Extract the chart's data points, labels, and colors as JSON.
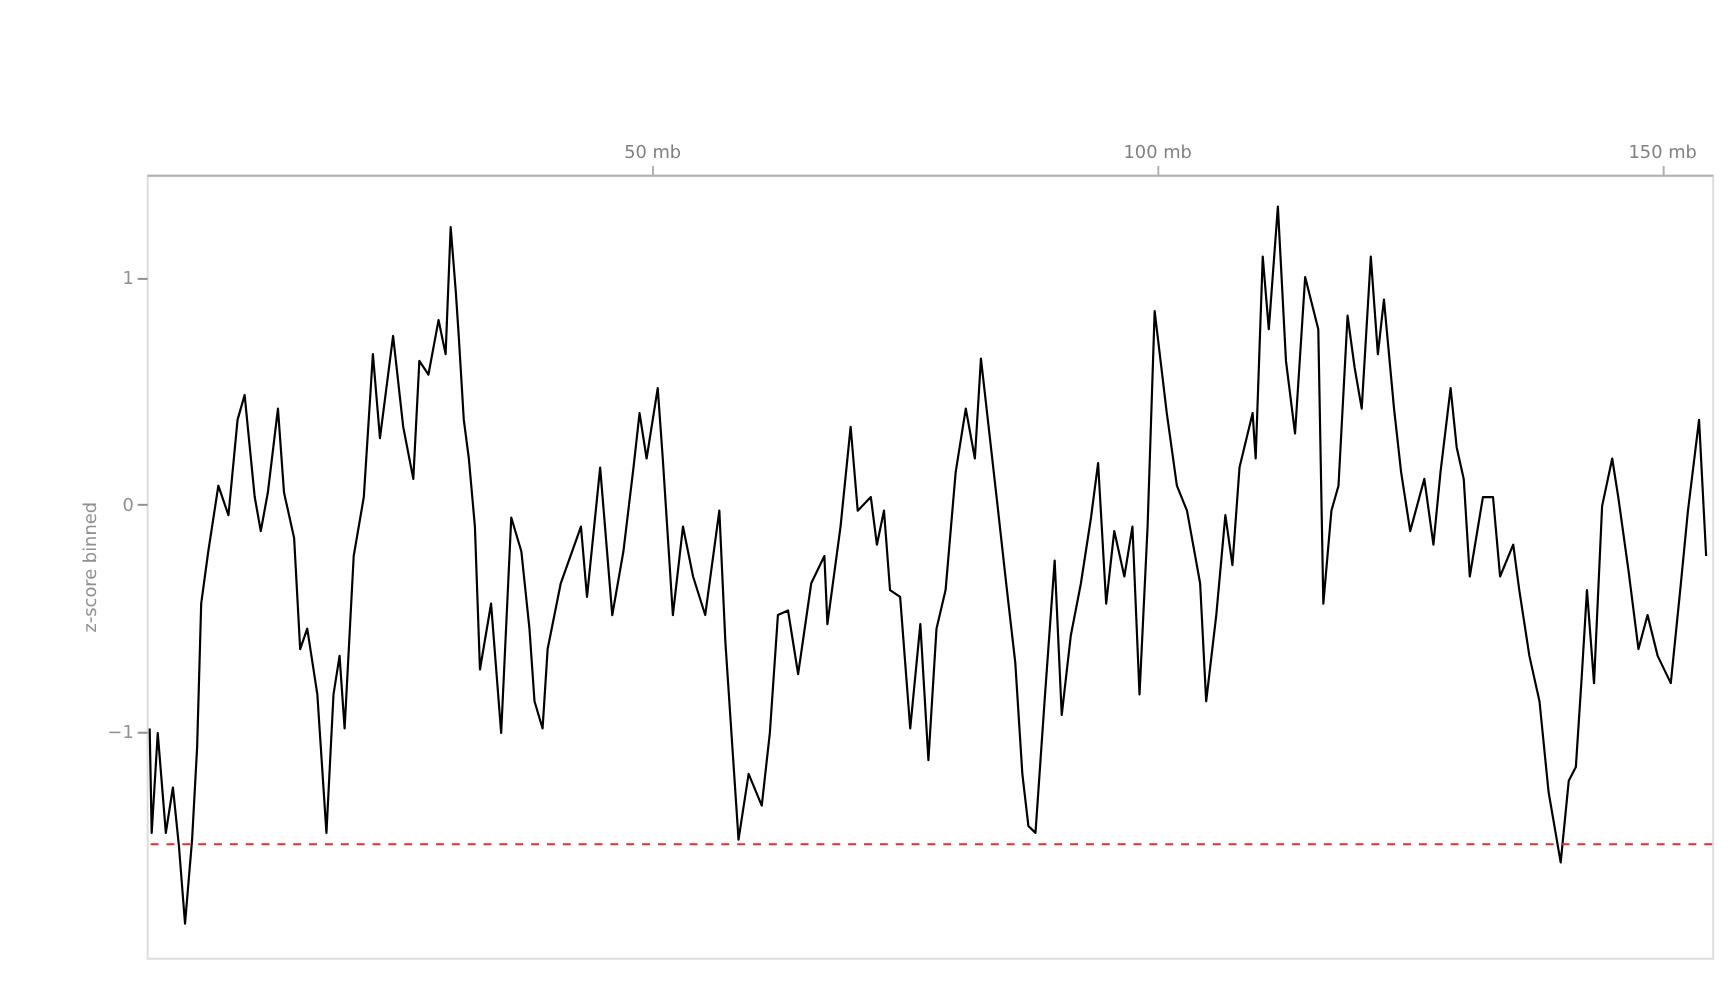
{
  "chart_data": {
    "type": "line",
    "ylabel": "z-score binned",
    "x": [
      0.3,
      0.5,
      1.1,
      1.9,
      2.6,
      3.2,
      3.8,
      4.5,
      5.0,
      5.4,
      6.1,
      7.1,
      8.1,
      9.0,
      9.7,
      10.7,
      11.3,
      12.0,
      13.0,
      13.6,
      14.6,
      15.2,
      15.9,
      16.9,
      17.8,
      18.5,
      19.1,
      19.6,
      20.5,
      21.5,
      22.4,
      23.1,
      24.4,
      25.4,
      26.4,
      27.0,
      27.9,
      28.9,
      29.6,
      30.1,
      30.6,
      30.9,
      31.4,
      31.9,
      32.5,
      33.0,
      34.1,
      35.1,
      36.1,
      37.1,
      37.9,
      38.4,
      39.2,
      39.7,
      41.0,
      43.0,
      43.6,
      44.9,
      46.1,
      47.2,
      48.2,
      48.8,
      49.5,
      50.6,
      51.1,
      52.1,
      53.1,
      54.1,
      55.3,
      56.7,
      57.3,
      58.6,
      59.6,
      60.9,
      61.7,
      62.5,
      63.5,
      64.5,
      65.8,
      67.1,
      67.4,
      68.7,
      69.7,
      70.4,
      71.7,
      72.3,
      73.0,
      73.6,
      74.6,
      75.6,
      76.6,
      77.4,
      78.2,
      79.1,
      80.1,
      81.1,
      82.0,
      82.6,
      84.1,
      85.1,
      86.0,
      86.7,
      87.3,
      88.0,
      88.9,
      89.9,
      90.6,
      91.5,
      92.5,
      93.5,
      94.2,
      95.0,
      95.8,
      96.8,
      97.6,
      98.3,
      99.1,
      99.8,
      101.0,
      102.0,
      103.0,
      104.3,
      104.9,
      105.9,
      106.8,
      107.5,
      108.2,
      109.5,
      109.8,
      110.5,
      111.1,
      112.0,
      112.8,
      113.7,
      114.7,
      116.0,
      116.5,
      117.3,
      118.0,
      118.9,
      119.6,
      120.3,
      121.2,
      121.9,
      122.5,
      123.5,
      124.2,
      125.1,
      126.5,
      127.4,
      128.1,
      129.1,
      129.7,
      130.4,
      131.0,
      132.3,
      133.3,
      134.0,
      135.3,
      135.9,
      136.9,
      137.9,
      138.8,
      140.0,
      140.8,
      141.5,
      142.1,
      142.6,
      143.3,
      144.1,
      145.1,
      145.7,
      146.7,
      147.7,
      148.6,
      149.6,
      150.9,
      151.9,
      152.6,
      153.7,
      154.4
    ],
    "series": [
      {
        "color": "#000000",
        "values": [
          -0.99,
          -1.45,
          -1.01,
          -1.45,
          -1.25,
          -1.51,
          -1.85,
          -1.48,
          -1.07,
          -0.44,
          -0.21,
          0.08,
          -0.05,
          0.37,
          0.48,
          0.03,
          -0.12,
          0.05,
          0.42,
          0.05,
          -0.15,
          -0.64,
          -0.55,
          -0.84,
          -1.45,
          -0.84,
          -0.67,
          -0.99,
          -0.23,
          0.03,
          0.66,
          0.29,
          0.74,
          0.34,
          0.11,
          0.63,
          0.57,
          0.81,
          0.66,
          1.22,
          0.94,
          0.74,
          0.37,
          0.2,
          -0.1,
          -0.73,
          -0.44,
          -1.01,
          -0.06,
          -0.21,
          -0.55,
          -0.87,
          -0.99,
          -0.64,
          -0.35,
          -0.1,
          -0.41,
          0.16,
          -0.49,
          -0.21,
          0.16,
          0.4,
          0.2,
          0.51,
          0.2,
          -0.49,
          -0.1,
          -0.32,
          -0.49,
          -0.03,
          -0.61,
          -1.48,
          -1.19,
          -1.33,
          -1.01,
          -0.49,
          -0.47,
          -0.75,
          -0.35,
          -0.23,
          -0.53,
          -0.1,
          0.34,
          -0.03,
          0.03,
          -0.18,
          -0.03,
          -0.38,
          -0.41,
          -0.99,
          -0.53,
          -1.13,
          -0.55,
          -0.38,
          0.14,
          0.42,
          0.2,
          0.64,
          0.05,
          -0.35,
          -0.7,
          -1.19,
          -1.42,
          -1.45,
          -0.87,
          -0.25,
          -0.93,
          -0.58,
          -0.35,
          -0.06,
          0.18,
          -0.44,
          -0.12,
          -0.32,
          -0.1,
          -0.84,
          -0.1,
          0.85,
          0.4,
          0.08,
          -0.03,
          -0.35,
          -0.87,
          -0.49,
          -0.05,
          -0.27,
          0.16,
          0.4,
          0.2,
          1.09,
          0.77,
          1.31,
          0.63,
          0.31,
          1.0,
          0.77,
          -0.44,
          -0.03,
          0.08,
          0.83,
          0.6,
          0.42,
          1.09,
          0.66,
          0.9,
          0.42,
          0.14,
          -0.12,
          0.11,
          -0.18,
          0.14,
          0.51,
          0.25,
          0.11,
          -0.32,
          0.03,
          0.03,
          -0.32,
          -0.18,
          -0.38,
          -0.67,
          -0.87,
          -1.27,
          -1.58,
          -1.22,
          -1.16,
          -0.75,
          -0.38,
          -0.79,
          -0.01,
          0.2,
          0.03,
          -0.29,
          -0.64,
          -0.49,
          -0.67,
          -0.79,
          -0.35,
          -0.03,
          0.37,
          -0.23
        ]
      }
    ],
    "xlim": [
      0,
      155
    ],
    "xticks": [
      {
        "value": 50,
        "label": "50 mb"
      },
      {
        "value": 100,
        "label": "100 mb"
      },
      {
        "value": 150,
        "label": "150 mb"
      }
    ],
    "ylim": [
      -2.0,
      1.45
    ],
    "yticks": [
      -1,
      0,
      1
    ],
    "ref_lines": [
      {
        "axis": "y",
        "value": -1.5,
        "color": "#e03030",
        "line_style": "dashed"
      }
    ],
    "marker": "none",
    "line_style": "solid"
  }
}
